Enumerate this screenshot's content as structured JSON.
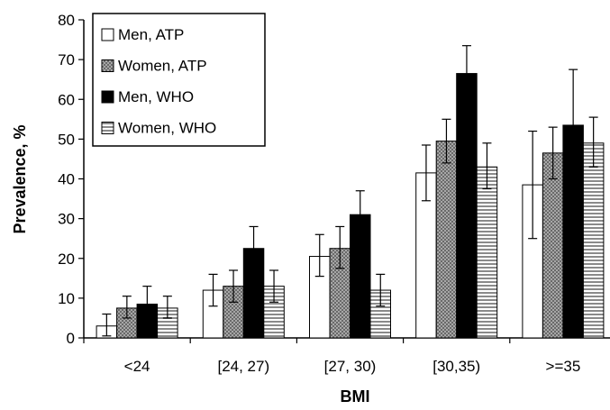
{
  "chart_data": {
    "type": "bar",
    "xlabel": "BMI",
    "ylabel": "Prevalence, %",
    "ylim": [
      0,
      80
    ],
    "yticks": [
      0,
      10,
      20,
      30,
      40,
      50,
      60,
      70,
      80
    ],
    "categories": [
      "<24",
      "[24, 27)",
      "[27, 30)",
      "[30,35)",
      ">=35"
    ],
    "error_bars": true,
    "grid": false,
    "legend_position": "top-left",
    "series": [
      {
        "name": "Men, ATP",
        "fill": "white",
        "values": [
          3,
          12,
          20.5,
          41.5,
          38.5
        ],
        "lower": [
          0.5,
          8,
          15.5,
          34.5,
          25
        ],
        "upper": [
          6,
          16,
          26,
          48.5,
          52
        ]
      },
      {
        "name": "Women, ATP",
        "fill": "hatched",
        "values": [
          7.5,
          13,
          22.5,
          49.5,
          46.5
        ],
        "lower": [
          5,
          9,
          17.5,
          44,
          40
        ],
        "upper": [
          10.5,
          17,
          28,
          55,
          53
        ]
      },
      {
        "name": "Men, WHO",
        "fill": "black",
        "values": [
          8.5,
          22.5,
          31,
          66.5,
          53.5
        ],
        "lower": [
          5,
          17,
          25,
          59.5,
          40
        ],
        "upper": [
          13,
          28,
          37,
          73.5,
          67.5
        ]
      },
      {
        "name": "Women, WHO",
        "fill": "striped",
        "values": [
          7.5,
          13,
          12,
          43,
          49
        ],
        "lower": [
          5,
          9,
          8,
          37.5,
          43
        ],
        "upper": [
          10.5,
          17,
          16,
          49,
          55.5
        ]
      }
    ]
  }
}
